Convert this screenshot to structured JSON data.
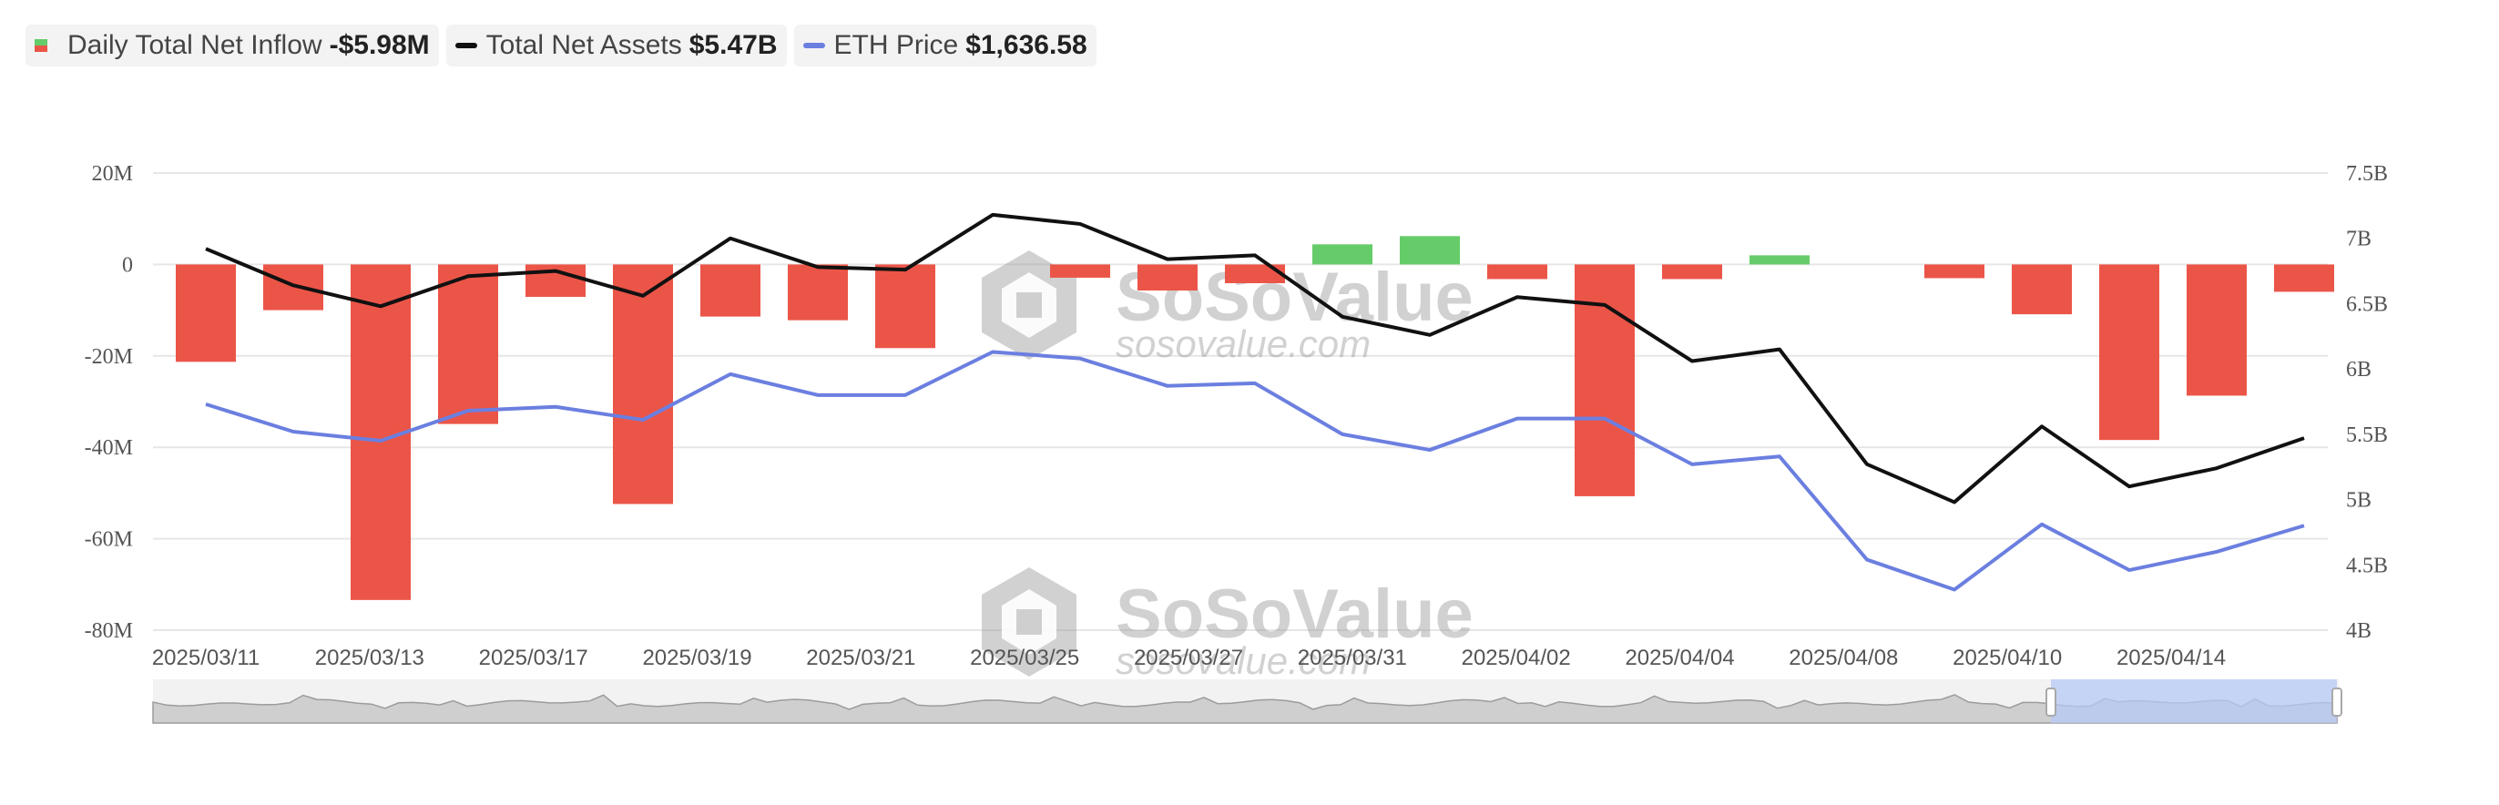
{
  "legend": {
    "inflow_label": "Daily Total Net Inflow",
    "inflow_value": "-$5.98M",
    "assets_label": "Total Net Assets",
    "assets_value": "$5.47B",
    "price_label": "ETH Price",
    "price_value": "$1,636.58"
  },
  "watermark": {
    "brand": "SoSoValue",
    "url": "sosovalue.com"
  },
  "colors": {
    "inflow_negative": "#eb5548",
    "inflow_positive": "#66cc6a",
    "net_assets": "#111111",
    "eth_price": "#6b7fe0",
    "grid": "#e6e6e6"
  },
  "chart_data": {
    "type": "bar",
    "y_left": {
      "ticks": [
        "20M",
        "0",
        "-20M",
        "-40M",
        "-60M",
        "-80M"
      ],
      "range": [
        -80,
        20
      ],
      "unit": "M"
    },
    "y_right": {
      "ticks": [
        "7.5B",
        "7B",
        "6.5B",
        "6B",
        "5.5B",
        "5B",
        "4.5B",
        "4B"
      ],
      "range": [
        4,
        7.5
      ],
      "unit": "B"
    },
    "x_tick_labels": [
      "2025/03/11",
      "2025/03/13",
      "2025/03/17",
      "2025/03/19",
      "2025/03/21",
      "2025/03/25",
      "2025/03/27",
      "2025/03/31",
      "2025/04/02",
      "2025/04/04",
      "2025/04/08",
      "2025/04/10",
      "2025/04/14"
    ],
    "grid": true,
    "series": [
      {
        "name": "Daily Total Net Inflow",
        "type": "bar",
        "axis": "left",
        "values": [
          -21.3,
          -10.0,
          -73.4,
          -34.9,
          -7.1,
          -52.4,
          -11.4,
          -12.2,
          -18.3,
          null,
          -2.9,
          -5.7,
          -4.1,
          4.4,
          6.2,
          -3.2,
          -50.7,
          -3.2,
          2.0,
          null,
          -3.0,
          -10.9,
          -38.4,
          -28.7,
          -5.98
        ]
      },
      {
        "name": "Total Net Assets",
        "type": "line",
        "axis": "right",
        "values": [
          6.92,
          6.64,
          6.48,
          6.71,
          6.75,
          6.56,
          7.0,
          6.78,
          6.76,
          7.18,
          7.11,
          6.84,
          6.87,
          6.4,
          6.26,
          6.55,
          6.49,
          6.06,
          6.15,
          5.27,
          4.98,
          5.56,
          5.1,
          5.24,
          5.47
        ]
      },
      {
        "name": "ETH Price",
        "type": "line",
        "axis": "right",
        "values": [
          5.73,
          5.52,
          5.45,
          5.68,
          5.71,
          5.61,
          5.96,
          5.8,
          5.8,
          6.13,
          6.08,
          5.87,
          5.89,
          5.5,
          5.38,
          5.62,
          5.62,
          5.27,
          5.33,
          4.54,
          4.31,
          4.81,
          4.46,
          4.6,
          4.8
        ]
      }
    ]
  }
}
